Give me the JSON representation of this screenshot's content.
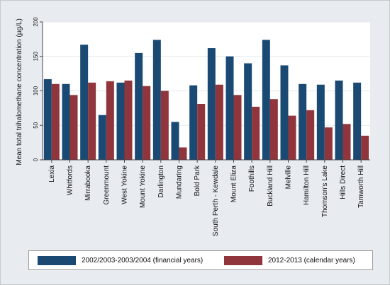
{
  "chart_data": {
    "type": "bar",
    "title": "",
    "xlabel": "",
    "ylabel": "Mean total trihalomethane concentration (µg/L)",
    "ylim": [
      0,
      200
    ],
    "yticks": [
      "0",
      "50",
      "100",
      "150",
      "200"
    ],
    "grid": true,
    "legend_position": "bottom",
    "categories": [
      "Lexia",
      "Whitfords",
      "Mirrabooka",
      "Greenmount",
      "West Yokine",
      "Mount Yokine",
      "Darlington",
      "Mundaring",
      "Bold Park",
      "South Perth - Kewdale",
      "Mount Eliza",
      "Foothills",
      "Buckland Hill",
      "Melville",
      "Hamilton Hill",
      "Thomson's Lake",
      "Hills Direct",
      "Tamworth Hill"
    ],
    "series": [
      {
        "name": "2002/2003-2003/2004 (financial years)",
        "color": "#1a4a73",
        "values": [
          117,
          110,
          167,
          65,
          112,
          155,
          174,
          55,
          108,
          162,
          150,
          140,
          174,
          137,
          110,
          109,
          115,
          112
        ]
      },
      {
        "name": "2012-2013 (calendar years)",
        "color": "#90353b",
        "values": [
          110,
          94,
          112,
          114,
          115,
          107,
          100,
          18,
          81,
          109,
          94,
          77,
          88,
          64,
          72,
          47,
          52,
          35
        ]
      }
    ]
  }
}
